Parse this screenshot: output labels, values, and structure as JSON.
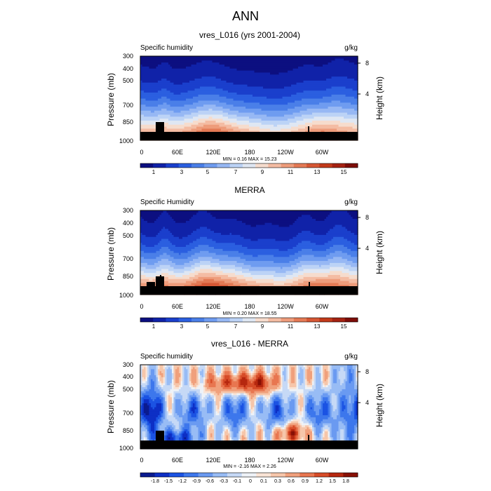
{
  "figure_title": "ANN",
  "colors": {
    "seq_palette": [
      "#0c0f80",
      "#1022a8",
      "#1a3fcc",
      "#2b5fe0",
      "#4a7fe8",
      "#6f9cf0",
      "#97b8f4",
      "#bcd3f6",
      "#dfe7f3",
      "#f6dccd",
      "#f4bca3",
      "#ee9c7b",
      "#e47a55",
      "#d65734",
      "#c23a1a",
      "#a52212",
      "#7d0d08"
    ],
    "div_palette": [
      "#0a1b8f",
      "#0d2fc5",
      "#1b53e3",
      "#3d77ec",
      "#6a9af1",
      "#98bcf5",
      "#c6d9f6",
      "#eef2f7",
      "#fae4d6",
      "#f6c6aa",
      "#f0a07c",
      "#e87650",
      "#d74c28",
      "#b6270f",
      "#881005"
    ],
    "terrain": "#000000"
  },
  "chart_data": [
    {
      "type": "heatmap",
      "title": "vres_L016 (yrs 2001-2004)",
      "left_label": "Specific humidity",
      "right_label": "g/kg",
      "ylabel": "Pressure (mb)",
      "ylabel_right": "Height (km)",
      "yticks": [
        "300",
        "400",
        "500",
        "700",
        "850",
        "1000"
      ],
      "yticks_right": [
        "8",
        "4"
      ],
      "xticks": [
        "0",
        "60E",
        "120E",
        "180",
        "120W",
        "60W"
      ],
      "min_max": "MIN =   0.16  MAX =  15.23",
      "colorbar_labels": [
        "1",
        "3",
        "5",
        "7",
        "9",
        "11",
        "13",
        "15"
      ],
      "min": 0.16,
      "max": 15.23
    },
    {
      "type": "heatmap",
      "title": "MERRA",
      "left_label": "Specific Humidity",
      "right_label": "g/kg",
      "ylabel": "Pressure (mb)",
      "ylabel_right": "Height (km)",
      "yticks": [
        "300",
        "400",
        "500",
        "700",
        "850",
        "1000"
      ],
      "yticks_right": [
        "8",
        "4"
      ],
      "xticks": [
        "0",
        "60E",
        "120E",
        "180",
        "120W",
        "60W"
      ],
      "min_max": "MIN =   0.20  MAX =  18.55",
      "colorbar_labels": [
        "1",
        "3",
        "5",
        "7",
        "9",
        "11",
        "13",
        "15"
      ],
      "min": 0.2,
      "max": 18.55
    },
    {
      "type": "heatmap",
      "title": "vres_L016 - MERRA",
      "left_label": "Specific humidity",
      "right_label": "g/kg",
      "ylabel": "Pressure (mb)",
      "ylabel_right": "Height (km)",
      "yticks": [
        "300",
        "400",
        "500",
        "700",
        "850",
        "1000"
      ],
      "yticks_right": [
        "8",
        "4"
      ],
      "xticks": [
        "0",
        "60E",
        "120E",
        "180",
        "120W",
        "60W"
      ],
      "min_max": "MIN =  -2.16  MAX =   2.26",
      "colorbar_labels": [
        "-1.8",
        "-1.5",
        "-1.2",
        "-0.9",
        "-0.6",
        "-0.3",
        "-0.1",
        "0",
        "0.1",
        "0.3",
        "0.6",
        "0.9",
        "1.2",
        "1.5",
        "1.8"
      ],
      "min": -2.16,
      "max": 2.26
    }
  ]
}
